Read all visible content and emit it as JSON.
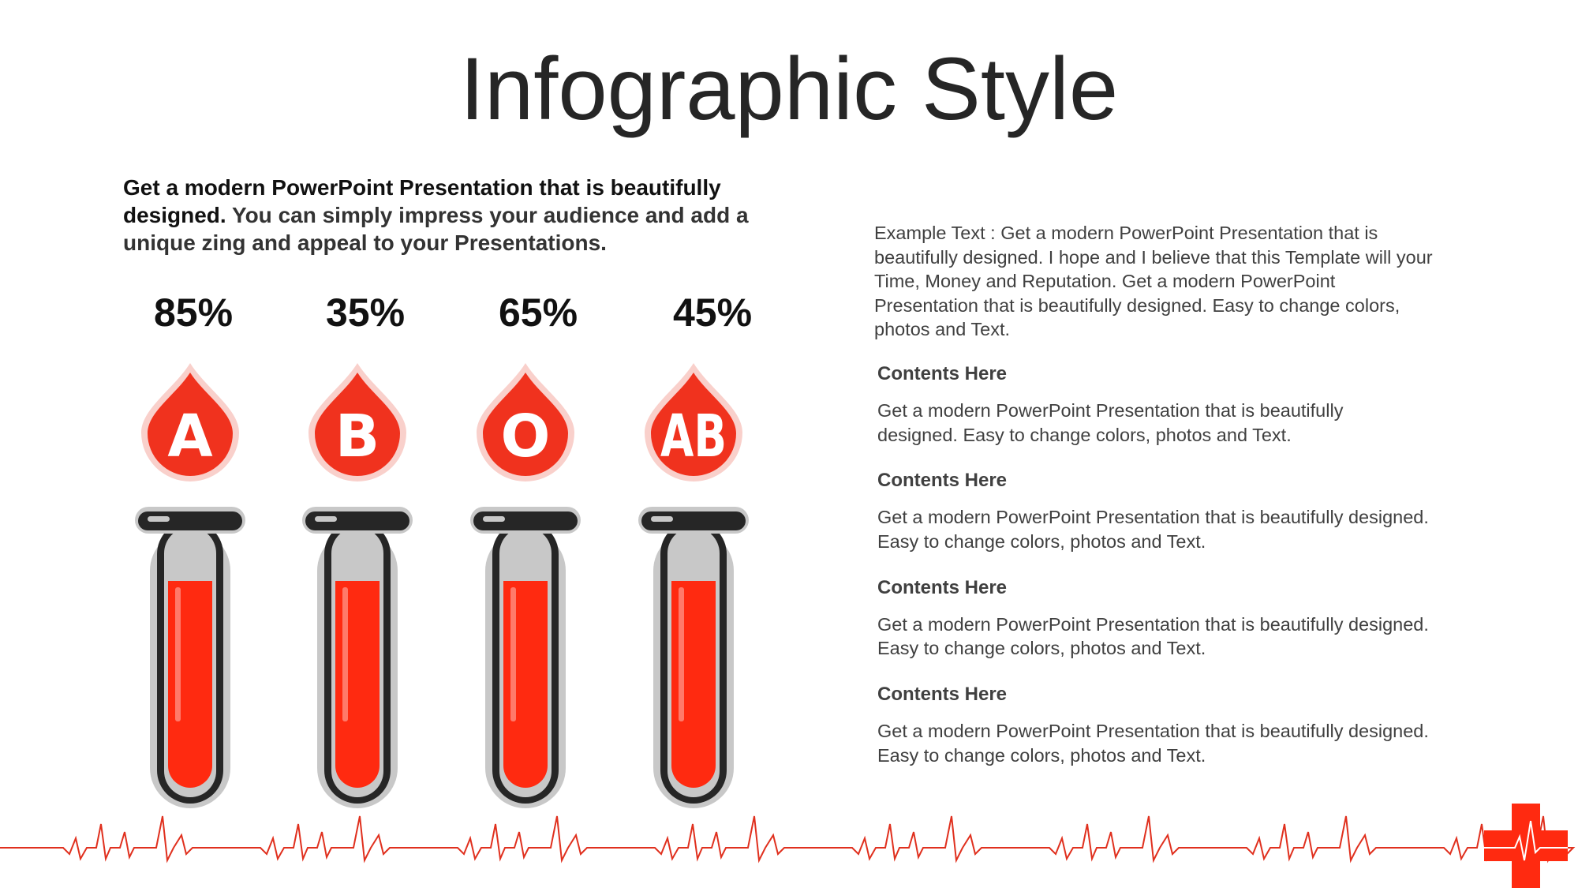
{
  "title": "Infographic Style",
  "intro": {
    "bold": "Get a modern PowerPoint  Presentation that is beautifully designed.",
    "rest": "You can simply impress your audience and add a unique zing and appeal to your Presentations."
  },
  "items": [
    {
      "percent": "85%",
      "letter": "A"
    },
    {
      "percent": "35%",
      "letter": "B"
    },
    {
      "percent": "65%",
      "letter": "O"
    },
    {
      "percent": "45%",
      "letter": "AB"
    }
  ],
  "example_text": [
    "Example Text : Get a modern PowerPoint  Presentation that is",
    "beautifully designed. I hope and I believe that this Template will your",
    "Time, Money and Reputation. Get a modern PowerPoint",
    "Presentation that is beautifully designed. Easy to change colors,",
    "photos and Text."
  ],
  "sections": [
    {
      "heading": "Contents Here",
      "body": [
        "Get a modern PowerPoint  Presentation that is beautifully",
        "designed. Easy to change colors, photos and Text."
      ]
    },
    {
      "heading": "Contents Here",
      "body": [
        "Get a modern PowerPoint  Presentation that is beautifully designed.",
        "Easy to change colors, photos and Text."
      ]
    },
    {
      "heading": "Contents Here",
      "body": [
        "Get a modern PowerPoint  Presentation that is beautifully designed.",
        "Easy to change colors, photos and Text."
      ]
    },
    {
      "heading": "Contents Here",
      "body": [
        "Get a modern PowerPoint  Presentation that is beautifully designed.",
        "Easy to change colors, photos and Text."
      ]
    }
  ]
}
